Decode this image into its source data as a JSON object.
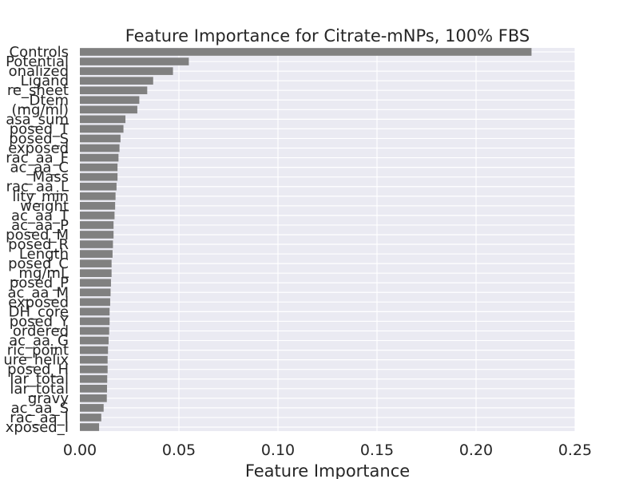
{
  "chart_data": {
    "type": "bar",
    "orientation": "horizontal",
    "title": "Feature Importance for Citrate-mNPs, 100% FBS",
    "xlabel": "Feature Importance",
    "ylabel": "",
    "xlim": [
      0.0,
      0.25
    ],
    "xticks": [
      "0.00",
      "0.05",
      "0.10",
      "0.15",
      "0.20",
      "0.25"
    ],
    "grid": true,
    "legend": "none",
    "colors": {
      "bar": "#808080",
      "plot_background": "#eaeaf2",
      "grid": "#ffffff",
      "text": "#262626"
    },
    "categories": [
      "Controls",
      "Potential",
      "onalized",
      "_Ligand",
      "re_sheet",
      "_Dtem",
      "(mg/ml)",
      "asa_sum",
      "posed_T",
      "posed_S",
      "exposed",
      "rac_aa_F",
      "ac_aa_C",
      "_Mass",
      "rac_aa_L",
      "lity_min",
      "weight",
      "ac_aa_T",
      "ac_aa_P",
      "posed_M",
      "posed_R",
      "Length",
      "posed_C",
      "_mg/mL",
      "posed_P",
      "ac_aa_M",
      "exposed",
      "DH_core",
      "posed_Y",
      "ordered",
      "ac_aa_G",
      "ric_point",
      "ure_helix",
      "posed_H",
      "lar_total",
      "lar_total",
      "gravy",
      "ac_aa_S",
      "rac_aa_I",
      "xposed_I"
    ],
    "values": [
      0.228,
      0.055,
      0.047,
      0.037,
      0.034,
      0.03,
      0.029,
      0.023,
      0.022,
      0.0205,
      0.02,
      0.0195,
      0.019,
      0.019,
      0.0185,
      0.018,
      0.0178,
      0.0175,
      0.017,
      0.017,
      0.0167,
      0.0165,
      0.016,
      0.016,
      0.0157,
      0.0155,
      0.0153,
      0.015,
      0.015,
      0.0148,
      0.0145,
      0.0142,
      0.014,
      0.014,
      0.0138,
      0.0137,
      0.0136,
      0.012,
      0.0108,
      0.0097
    ]
  }
}
